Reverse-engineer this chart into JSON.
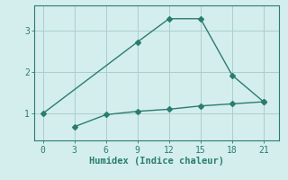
{
  "line1_x": [
    0,
    9,
    12,
    15,
    18,
    21
  ],
  "line1_y": [
    1.0,
    2.72,
    3.28,
    3.28,
    1.92,
    1.28
  ],
  "line2_x": [
    3,
    6,
    9,
    12,
    15,
    18,
    21
  ],
  "line2_y": [
    0.68,
    0.97,
    1.05,
    1.1,
    1.18,
    1.23,
    1.28
  ],
  "line_color": "#2a7d6e",
  "bg_color": "#d4eeed",
  "grid_color": "#aacfcc",
  "spine_color": "#2a7d6e",
  "xlabel": "Humidex (Indice chaleur)",
  "xticks": [
    0,
    3,
    6,
    9,
    12,
    15,
    18,
    21
  ],
  "yticks": [
    1,
    2,
    3
  ],
  "xlim": [
    -0.8,
    22.5
  ],
  "ylim": [
    0.35,
    3.6
  ],
  "xlabel_fontsize": 7.5,
  "tick_fontsize": 7,
  "marker": "D",
  "marker_size": 3,
  "linewidth": 1.0
}
